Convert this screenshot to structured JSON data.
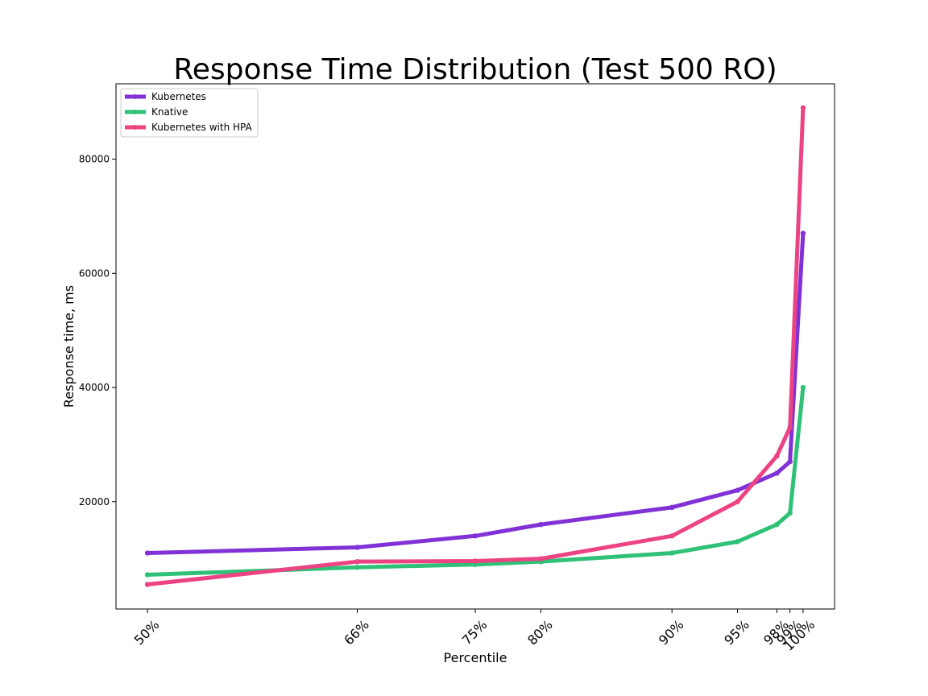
{
  "chart_data": {
    "type": "line",
    "title": "Response Time Distribution (Test 500 RO)",
    "xlabel": "Percentile",
    "ylabel": "Response time, ms",
    "x": [
      50,
      66,
      75,
      80,
      90,
      95,
      98,
      99,
      100
    ],
    "xtick_labels": [
      "50%",
      "66%",
      "75%",
      "80%",
      "90%",
      "95%",
      "98%",
      "99%",
      "100%"
    ],
    "yticks": [
      20000,
      40000,
      60000,
      80000
    ],
    "ytick_labels": [
      "20000",
      "40000",
      "60000",
      "80000"
    ],
    "xlim": [
      47.6,
      102.4
    ],
    "ylim": [
      1200,
      93200
    ],
    "grid": false,
    "legend_position": "top-left",
    "series": [
      {
        "name": "Kubernetes",
        "color": "#8032d6",
        "values": [
          11000,
          12000,
          14000,
          16000,
          19000,
          22000,
          25000,
          27000,
          67000
        ]
      },
      {
        "name": "Knative",
        "color": "#2ec177",
        "values": [
          7200,
          8500,
          9000,
          9500,
          11000,
          13000,
          16000,
          18000,
          40000
        ]
      },
      {
        "name": "Kubernetes with HPA",
        "color": "#ec4483",
        "values": [
          5500,
          9500,
          9600,
          10000,
          14000,
          20000,
          28000,
          33000,
          89000
        ]
      }
    ]
  }
}
